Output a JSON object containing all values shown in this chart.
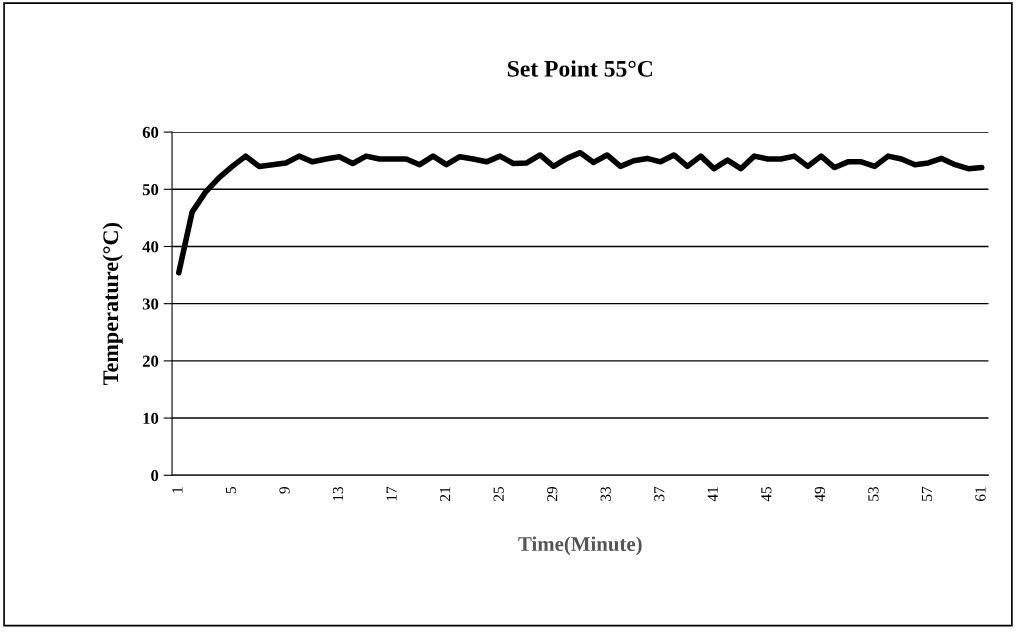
{
  "chart_data": {
    "type": "line",
    "title": "Set Point 55°C",
    "xlabel": "Time(Minute)",
    "ylabel": "Temperature(°C)",
    "categories": [
      "1",
      null,
      null,
      null,
      "5",
      null,
      null,
      null,
      "9",
      null,
      null,
      null,
      "13",
      null,
      null,
      null,
      "17",
      null,
      null,
      null,
      "21",
      null,
      null,
      null,
      "25",
      null,
      null,
      null,
      "29",
      null,
      null,
      null,
      "33",
      null,
      null,
      null,
      "37",
      null,
      null,
      null,
      "41",
      null,
      null,
      null,
      "45",
      null,
      null,
      null,
      "49",
      null,
      null,
      null,
      "53",
      null,
      null,
      null,
      "57",
      null,
      null,
      null,
      "61"
    ],
    "series": [
      {
        "color": "#000000",
        "values": [
          35.4,
          46,
          49.5,
          52,
          54,
          55.8,
          54,
          54.3,
          54.6,
          55.8,
          54.8,
          55.3,
          55.7,
          54.5,
          55.8,
          55.3,
          55.3,
          55.3,
          54.3,
          55.8,
          54.3,
          55.7,
          55.3,
          54.8,
          55.8,
          54.5,
          54.6,
          56,
          54,
          55.4,
          56.4,
          54.7,
          56,
          54,
          55,
          55.4,
          54.8,
          56,
          54,
          55.8,
          53.6,
          55.1,
          53.6,
          55.8,
          55.3,
          55.3,
          55.8,
          54,
          55.8,
          53.8,
          54.8,
          54.8,
          54,
          55.8,
          55.3,
          54.3,
          54.6,
          55.4,
          54.3,
          53.6,
          53.8
        ]
      }
    ],
    "ylim": [
      0,
      60
    ],
    "yticks": [
      0,
      10,
      20,
      30,
      40,
      50,
      60
    ],
    "grid": "y",
    "marker": "none",
    "line_style": "solid"
  }
}
